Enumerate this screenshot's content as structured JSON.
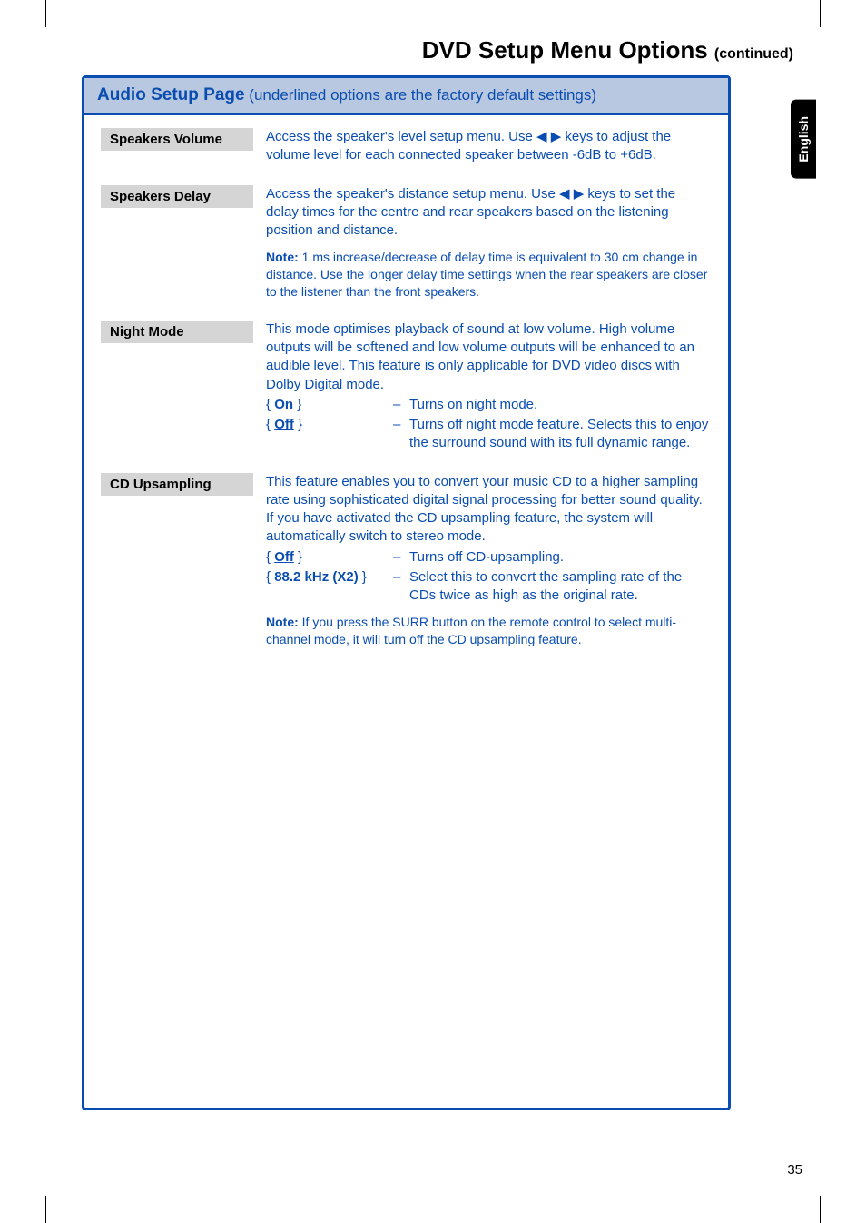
{
  "page": {
    "title": "DVD Setup Menu Options",
    "continued": "(continued)",
    "side_tab": "English",
    "page_number": "35"
  },
  "section": {
    "header_bold": "Audio Setup Page",
    "header_rest": " (underlined options are the factory default settings)"
  },
  "rows": {
    "speakers_volume": {
      "label": "Speakers Volume",
      "desc": "Access the speaker's level setup menu.  Use ◀ ▶ keys to adjust the volume level for each connected speaker between -6dB to +6dB."
    },
    "speakers_delay": {
      "label": "Speakers Delay",
      "desc": "Access the speaker's distance setup menu.  Use ◀ ▶ keys to set the delay times for the centre and rear speakers based on the listening position and distance.",
      "note_bold": "Note:",
      "note_text": "  1 ms increase/decrease of delay time is equivalent to 30 cm change in distance.  Use the longer delay time settings when the rear speakers are closer to the listener than the front speakers."
    },
    "night_mode": {
      "label": "Night Mode",
      "desc": "This mode optimises playback of sound at low volume.  High volume outputs will be softened and low volume outputs will be enhanced to an audible level.  This feature is only applicable for DVD video discs with Dolby Digital mode.",
      "opt1_key_open": "{ ",
      "opt1_key_name": "On",
      "opt1_key_close": " }",
      "opt1_val": "Turns on night mode.",
      "opt2_key_open": "{ ",
      "opt2_key_name": "Off",
      "opt2_key_close": " }",
      "opt2_val": "Turns off night mode feature. Selects this to enjoy the surround sound with its full dynamic range."
    },
    "cd_upsampling": {
      "label": "CD Upsampling",
      "desc": "This feature enables you to convert your music CD to a higher sampling rate using sophisticated digital signal processing for better sound quality.  If you have activated the CD upsampling feature, the system will automatically switch to stereo mode.",
      "opt1_key_open": "{ ",
      "opt1_key_name": "Off",
      "opt1_key_close": " }",
      "opt1_val": "Turns off CD-upsampling.",
      "opt2_key_open": "{ ",
      "opt2_key_name": "88.2 kHz (X2)",
      "opt2_key_close": " }",
      "opt2_val": "Select this to convert the sampling rate of the CDs twice as high as the original rate.",
      "note_bold": "Note:",
      "note_text": "  If you press the SURR button on the remote control to select multi-channel mode, it will turn off the CD upsampling feature."
    }
  }
}
